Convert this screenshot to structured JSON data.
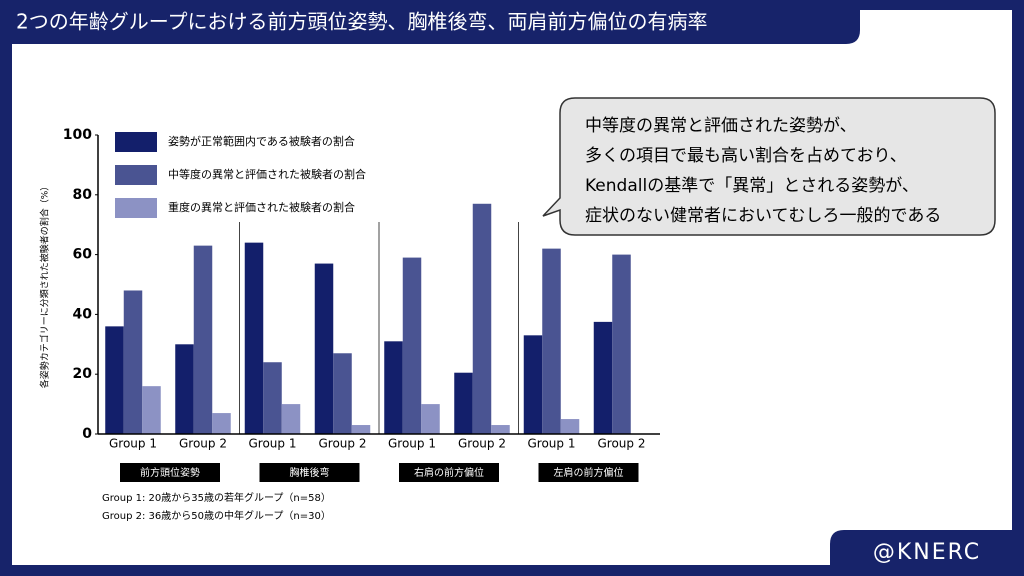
{
  "header": {
    "title": "2つの年齢グループにおける前方頭位姿勢、胸椎後弯、両肩前方偏位の有病率"
  },
  "chart_data": {
    "type": "bar",
    "y_label": "各姿勢カテゴリーに分類された被験者の割合（%）",
    "groups": [
      "前方頭位姿勢",
      "胸椎後弯",
      "右肩の前方偏位",
      "左肩の前方偏位"
    ],
    "categories": [
      "Group 1",
      "Group 2",
      "Group 1",
      "Group 2",
      "Group 1",
      "Group 2",
      "Group 1",
      "Group 2"
    ],
    "series": [
      {
        "name": "姿勢が正常範囲内である被験者の割合",
        "color": "#131f6b",
        "values": [
          36,
          30,
          64,
          57,
          31,
          20.5,
          33,
          37.5
        ]
      },
      {
        "name": "中等度の異常と評価された被験者の割合",
        "color": "#4a5492",
        "values": [
          48,
          63,
          24,
          27,
          59,
          77,
          62,
          60
        ]
      },
      {
        "name": "重度の異常と評価された被験者の割合",
        "color": "#8c92c4",
        "values": [
          16,
          7,
          10,
          3,
          10,
          3,
          5,
          0
        ]
      }
    ],
    "ylim": [
      0,
      100
    ],
    "yticks": [
      0,
      20,
      40,
      60,
      80,
      100
    ],
    "grid": false,
    "legend": "top-left"
  },
  "callout": {
    "lines": [
      "中等度の異常と評価された姿勢が、",
      "多くの項目で最も高い割合を占めており、",
      "Kendallの基準で「異常」とされる姿勢が、",
      "症状のない健常者においてむしろ一般的である"
    ]
  },
  "notes": [
    "Group 1: 20歳から35歳の若年グループ（n=58）",
    "Group 2: 36歳から50歳の中年グループ（n=30）"
  ],
  "brand": "@KNERC"
}
